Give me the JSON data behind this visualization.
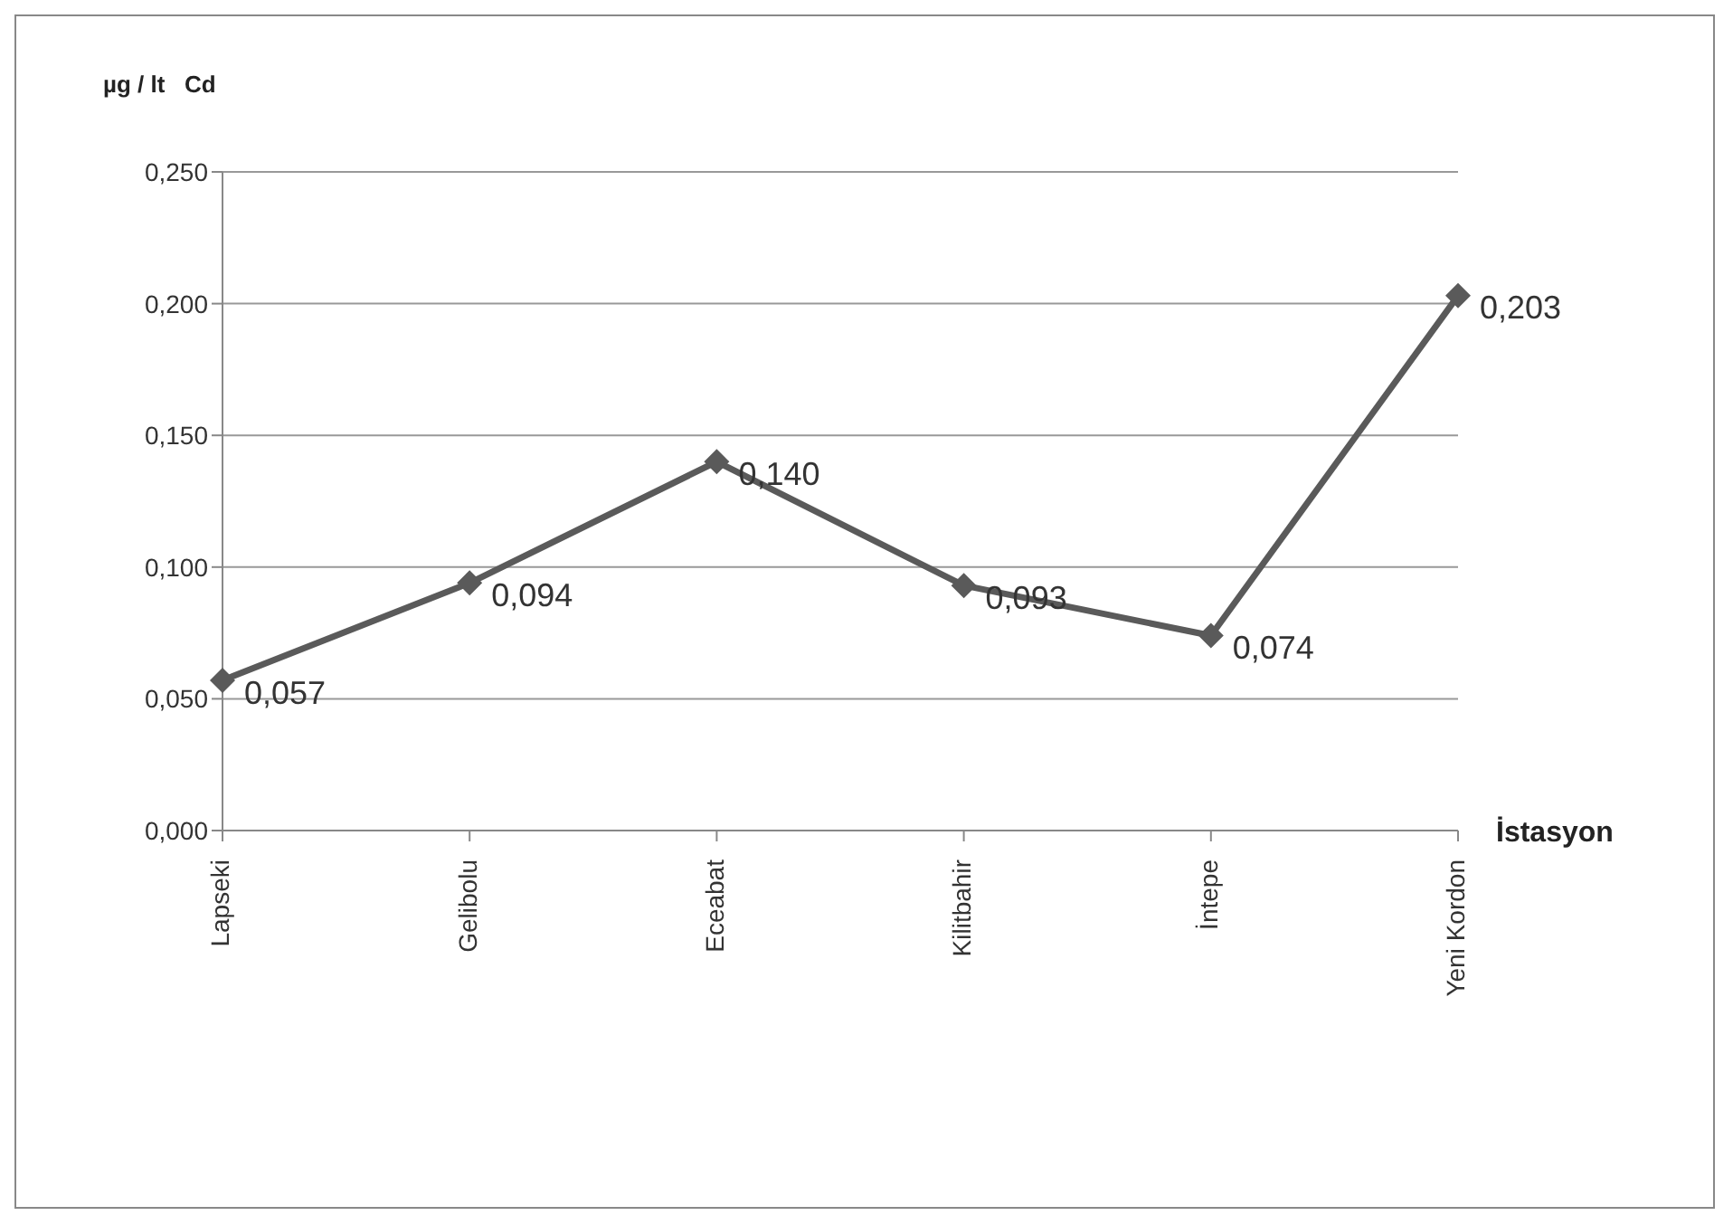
{
  "chart_data": {
    "type": "line",
    "ylabel": "µg / lt   Cd",
    "xlabel": "İstasyon",
    "categories": [
      "Lapseki",
      "Gelibolu",
      "Eceabat",
      "Kilitbahir",
      "İntepe",
      "Yeni Kordon"
    ],
    "series": [
      {
        "color": "#5a5a5a",
        "values": [
          0.057,
          0.094,
          0.14,
          0.093,
          0.074,
          0.203
        ],
        "value_labels": [
          "0,057",
          "0,094",
          "0,140",
          "0,093",
          "0,074",
          "0,203"
        ]
      }
    ],
    "ylim": [
      0,
      0.25
    ],
    "yticks": [
      {
        "value": 0,
        "label": "0,000"
      },
      {
        "value": 0.05,
        "label": "0,050"
      },
      {
        "value": 0.1,
        "label": "0,100"
      },
      {
        "value": 0.15,
        "label": "0,150"
      },
      {
        "value": 0.2,
        "label": "0,200"
      },
      {
        "value": 0.25,
        "label": "0,250"
      }
    ],
    "grid": "y",
    "legend": false,
    "marker": "diamond",
    "line_style": "solid"
  }
}
